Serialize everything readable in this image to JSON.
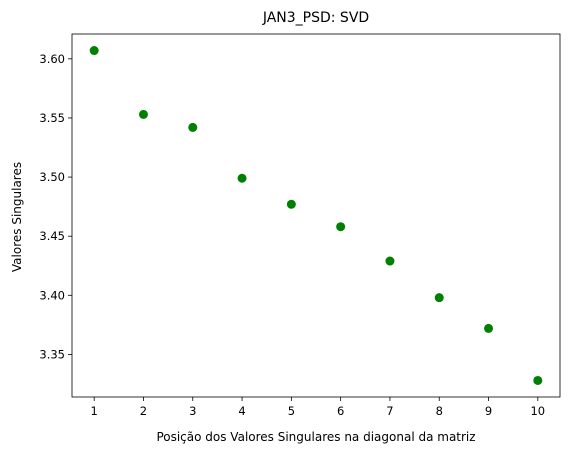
{
  "chart_data": {
    "type": "scatter",
    "title": "JAN3_PSD: SVD",
    "xlabel": "Posição dos Valores Singulares na diagonal da matriz",
    "ylabel": "Valores Singulares",
    "x": [
      1,
      2,
      3,
      4,
      5,
      6,
      7,
      8,
      9,
      10
    ],
    "y": [
      3.607,
      3.553,
      3.542,
      3.499,
      3.477,
      3.458,
      3.429,
      3.398,
      3.372,
      3.328
    ],
    "xticks": [
      "1",
      "2",
      "3",
      "4",
      "5",
      "6",
      "7",
      "8",
      "9",
      "10"
    ],
    "yticks": [
      "3.35",
      "3.40",
      "3.45",
      "3.50",
      "3.55",
      "3.60"
    ],
    "xlim": [
      0.55,
      10.45
    ],
    "ylim": [
      3.314,
      3.621
    ],
    "marker_color": "#008000",
    "grid": false,
    "legend": "none"
  }
}
